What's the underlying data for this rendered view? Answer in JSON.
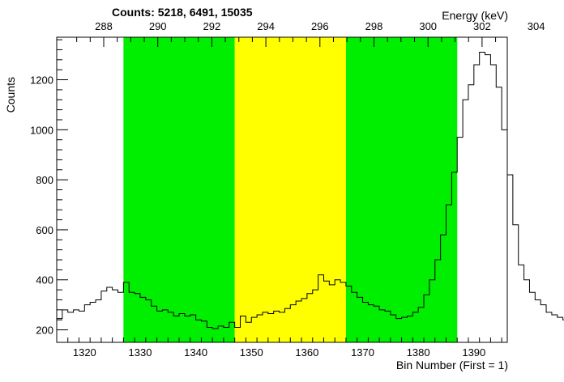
{
  "chart_data": {
    "type": "histogram",
    "title": "Counts:   5218,   6491,   15035",
    "ylabel": "Counts",
    "xlabel": "Bin Number (First = 1)",
    "x2label": "Energy (keV)",
    "xlim": [
      1315,
      1396
    ],
    "ylim": [
      150,
      1370
    ],
    "x_ticks": [
      1320,
      1330,
      1340,
      1350,
      1360,
      1370,
      1380,
      1390
    ],
    "y_ticks": [
      200,
      400,
      600,
      800,
      1000,
      1200
    ],
    "energy_ticks": [
      288,
      290,
      292,
      294,
      296,
      298,
      300,
      302,
      304
    ],
    "bin_start": 1315,
    "bin_width": 1,
    "values": [
      245,
      280,
      270,
      280,
      275,
      300,
      310,
      320,
      355,
      370,
      360,
      350,
      390,
      350,
      345,
      330,
      320,
      295,
      275,
      280,
      270,
      255,
      265,
      255,
      260,
      240,
      235,
      210,
      205,
      215,
      210,
      230,
      210,
      255,
      230,
      250,
      260,
      270,
      265,
      275,
      270,
      285,
      300,
      315,
      325,
      345,
      360,
      420,
      395,
      380,
      400,
      390,
      375,
      350,
      330,
      310,
      300,
      295,
      280,
      275,
      260,
      245,
      250,
      255,
      270,
      290,
      340,
      400,
      480,
      580,
      700,
      830,
      970,
      1120,
      1180,
      1260,
      1310,
      1300,
      1260,
      1170,
      1000,
      820,
      620,
      460,
      400,
      350,
      320,
      300,
      270,
      260,
      250,
      240,
      235,
      230,
      225,
      245,
      260,
      270
    ],
    "regions": [
      {
        "from": 1327,
        "to": 1347,
        "color": "#00ee00"
      },
      {
        "from": 1347,
        "to": 1367,
        "color": "#ffff00"
      },
      {
        "from": 1367,
        "to": 1387,
        "color": "#00ee00"
      }
    ],
    "line_color": "#000000",
    "grid": false
  }
}
